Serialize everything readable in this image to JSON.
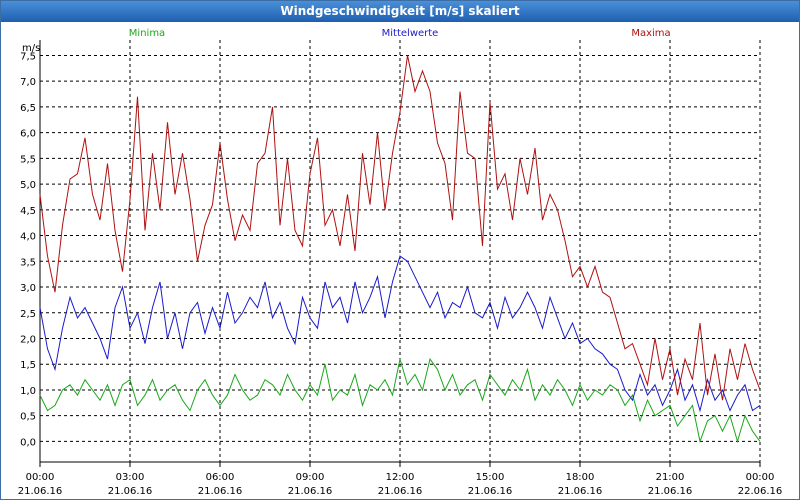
{
  "window": {
    "title": "Windgeschwindigkeit [m/s] skaliert"
  },
  "chart_data": {
    "type": "line",
    "title": "Windgeschwindigkeit [m/s] skaliert",
    "ylabel": "m/s",
    "ylim": [
      -0.4,
      7.8
    ],
    "xlim": [
      0,
      24
    ],
    "yticks": [
      "0,0",
      "0,5",
      "1,0",
      "1,5",
      "2,0",
      "2,5",
      "3,0",
      "3,5",
      "4,0",
      "4,5",
      "5,0",
      "5,5",
      "6,0",
      "6,5",
      "7,0",
      "7,5"
    ],
    "ytick_values": [
      0,
      0.5,
      1,
      1.5,
      2,
      2.5,
      3,
      3.5,
      4,
      4.5,
      5,
      5.5,
      6,
      6.5,
      7,
      7.5
    ],
    "xticks": [
      {
        "time": "00:00",
        "date": "21.06.16"
      },
      {
        "time": "03:00",
        "date": "21.06.16"
      },
      {
        "time": "06:00",
        "date": "21.06.16"
      },
      {
        "time": "09:00",
        "date": "21.06.16"
      },
      {
        "time": "12:00",
        "date": "21.06.16"
      },
      {
        "time": "15:00",
        "date": "21.06.16"
      },
      {
        "time": "18:00",
        "date": "21.06.16"
      },
      {
        "time": "21:00",
        "date": "21.06.16"
      },
      {
        "time": "00:00",
        "date": "22.06.16"
      }
    ],
    "xtick_hours": [
      0,
      3,
      6,
      9,
      12,
      15,
      18,
      21,
      24
    ],
    "grid": true,
    "series": [
      {
        "name": "Minima",
        "color": "#1aa81a",
        "x": [
          0,
          0.25,
          0.5,
          0.75,
          1,
          1.25,
          1.5,
          1.75,
          2,
          2.25,
          2.5,
          2.75,
          3,
          3.25,
          3.5,
          3.75,
          4,
          4.25,
          4.5,
          4.75,
          5,
          5.25,
          5.5,
          5.75,
          6,
          6.25,
          6.5,
          6.75,
          7,
          7.25,
          7.5,
          7.75,
          8,
          8.25,
          8.5,
          8.75,
          9,
          9.25,
          9.5,
          9.75,
          10,
          10.25,
          10.5,
          10.75,
          11,
          11.25,
          11.5,
          11.75,
          12,
          12.25,
          12.5,
          12.75,
          13,
          13.25,
          13.5,
          13.75,
          14,
          14.25,
          14.5,
          14.75,
          15,
          15.25,
          15.5,
          15.75,
          16,
          16.25,
          16.5,
          16.75,
          17,
          17.25,
          17.5,
          17.75,
          18,
          18.25,
          18.5,
          18.75,
          19,
          19.25,
          19.5,
          19.75,
          20,
          20.25,
          20.5,
          20.75,
          21,
          21.25,
          21.5,
          21.75,
          22,
          22.25,
          22.5,
          22.75,
          23,
          23.25,
          23.5,
          23.75,
          24
        ],
        "values": [
          0.9,
          0.6,
          0.7,
          1.0,
          1.1,
          0.9,
          1.2,
          1.0,
          0.8,
          1.1,
          0.7,
          1.1,
          1.2,
          0.7,
          0.9,
          1.2,
          0.8,
          1.0,
          1.1,
          0.8,
          0.6,
          1.0,
          1.2,
          0.9,
          0.7,
          0.9,
          1.3,
          1.0,
          0.8,
          0.9,
          1.2,
          1.1,
          0.9,
          1.3,
          1.0,
          0.8,
          1.1,
          0.9,
          1.5,
          0.8,
          1.0,
          0.9,
          1.3,
          0.7,
          1.1,
          1.0,
          1.2,
          0.9,
          1.6,
          1.1,
          1.3,
          1.0,
          1.6,
          1.4,
          1.0,
          1.3,
          0.9,
          1.1,
          1.2,
          0.8,
          1.3,
          1.1,
          0.9,
          1.2,
          1.0,
          1.4,
          0.8,
          1.1,
          0.9,
          1.2,
          1.0,
          0.7,
          1.1,
          0.8,
          1.0,
          0.9,
          1.1,
          1.0,
          0.7,
          0.9,
          0.4,
          0.8,
          0.5,
          0.6,
          0.7,
          0.3,
          0.5,
          0.7,
          0.0,
          0.4,
          0.5,
          0.2,
          0.5,
          0.0,
          0.5,
          0.2,
          0.0
        ]
      },
      {
        "name": "Mittelwerte",
        "color": "#1a1acc",
        "x": [
          0,
          0.25,
          0.5,
          0.75,
          1,
          1.25,
          1.5,
          1.75,
          2,
          2.25,
          2.5,
          2.75,
          3,
          3.25,
          3.5,
          3.75,
          4,
          4.25,
          4.5,
          4.75,
          5,
          5.25,
          5.5,
          5.75,
          6,
          6.25,
          6.5,
          6.75,
          7,
          7.25,
          7.5,
          7.75,
          8,
          8.25,
          8.5,
          8.75,
          9,
          9.25,
          9.5,
          9.75,
          10,
          10.25,
          10.5,
          10.75,
          11,
          11.25,
          11.5,
          11.75,
          12,
          12.25,
          12.5,
          12.75,
          13,
          13.25,
          13.5,
          13.75,
          14,
          14.25,
          14.5,
          14.75,
          15,
          15.25,
          15.5,
          15.75,
          16,
          16.25,
          16.5,
          16.75,
          17,
          17.25,
          17.5,
          17.75,
          18,
          18.25,
          18.5,
          18.75,
          19,
          19.25,
          19.5,
          19.75,
          20,
          20.25,
          20.5,
          20.75,
          21,
          21.25,
          21.5,
          21.75,
          22,
          22.25,
          22.5,
          22.75,
          23,
          23.25,
          23.5,
          23.75,
          24
        ],
        "values": [
          2.6,
          1.8,
          1.4,
          2.2,
          2.8,
          2.4,
          2.6,
          2.3,
          2.0,
          1.6,
          2.6,
          3.0,
          2.2,
          2.5,
          1.9,
          2.6,
          3.1,
          2.0,
          2.5,
          1.8,
          2.5,
          2.7,
          2.1,
          2.6,
          2.2,
          2.9,
          2.3,
          2.5,
          2.8,
          2.6,
          3.1,
          2.4,
          2.7,
          2.2,
          1.9,
          2.8,
          2.4,
          2.2,
          3.1,
          2.6,
          2.8,
          2.3,
          3.1,
          2.5,
          2.8,
          3.2,
          2.4,
          3.1,
          3.6,
          3.5,
          3.2,
          2.9,
          2.6,
          2.9,
          2.4,
          2.7,
          2.6,
          3.0,
          2.5,
          2.4,
          2.7,
          2.2,
          2.8,
          2.4,
          2.6,
          2.9,
          2.6,
          2.2,
          2.8,
          2.4,
          2.0,
          2.3,
          1.9,
          2.0,
          1.8,
          1.7,
          1.5,
          1.4,
          1.0,
          0.8,
          1.3,
          0.9,
          1.1,
          0.7,
          1.0,
          1.4,
          0.8,
          1.1,
          0.6,
          1.2,
          0.8,
          1.0,
          0.6,
          0.9,
          1.1,
          0.6,
          0.7
        ]
      },
      {
        "name": "Maxima",
        "color": "#b01010",
        "x": [
          0,
          0.25,
          0.5,
          0.75,
          1,
          1.25,
          1.5,
          1.75,
          2,
          2.25,
          2.5,
          2.75,
          3,
          3.25,
          3.5,
          3.75,
          4,
          4.25,
          4.5,
          4.75,
          5,
          5.25,
          5.5,
          5.75,
          6,
          6.25,
          6.5,
          6.75,
          7,
          7.25,
          7.5,
          7.75,
          8,
          8.25,
          8.5,
          8.75,
          9,
          9.25,
          9.5,
          9.75,
          10,
          10.25,
          10.5,
          10.75,
          11,
          11.25,
          11.5,
          11.75,
          12,
          12.25,
          12.5,
          12.75,
          13,
          13.25,
          13.5,
          13.75,
          14,
          14.25,
          14.5,
          14.75,
          15,
          15.25,
          15.5,
          15.75,
          16,
          16.25,
          16.5,
          16.75,
          17,
          17.25,
          17.5,
          17.75,
          18,
          18.25,
          18.5,
          18.75,
          19,
          19.25,
          19.5,
          19.75,
          20,
          20.25,
          20.5,
          20.75,
          21,
          21.25,
          21.5,
          21.75,
          22,
          22.25,
          22.5,
          22.75,
          23,
          23.25,
          23.5,
          23.75,
          24
        ],
        "values": [
          4.8,
          3.6,
          2.9,
          4.2,
          5.1,
          5.2,
          5.9,
          4.8,
          4.3,
          5.4,
          4.1,
          3.3,
          4.7,
          6.7,
          4.1,
          5.6,
          4.5,
          6.2,
          4.8,
          5.6,
          4.7,
          3.5,
          4.2,
          4.6,
          5.8,
          4.7,
          3.9,
          4.4,
          4.1,
          5.4,
          5.6,
          6.5,
          4.2,
          5.5,
          4.1,
          3.8,
          5.2,
          5.9,
          4.2,
          4.5,
          3.8,
          4.8,
          3.7,
          5.6,
          4.6,
          6.0,
          4.5,
          5.6,
          6.4,
          7.5,
          6.8,
          7.2,
          6.8,
          5.8,
          5.4,
          4.3,
          6.8,
          5.6,
          5.5,
          3.8,
          6.6,
          4.9,
          5.2,
          4.3,
          5.5,
          4.8,
          5.7,
          4.3,
          4.8,
          4.5,
          3.9,
          3.2,
          3.4,
          3.0,
          3.4,
          2.9,
          2.8,
          2.3,
          1.8,
          1.9,
          1.5,
          1.1,
          2.0,
          1.2,
          1.8,
          0.9,
          1.6,
          1.2,
          2.3,
          0.9,
          1.7,
          0.8,
          1.8,
          1.2,
          1.9,
          1.4,
          1.0
        ]
      }
    ]
  }
}
